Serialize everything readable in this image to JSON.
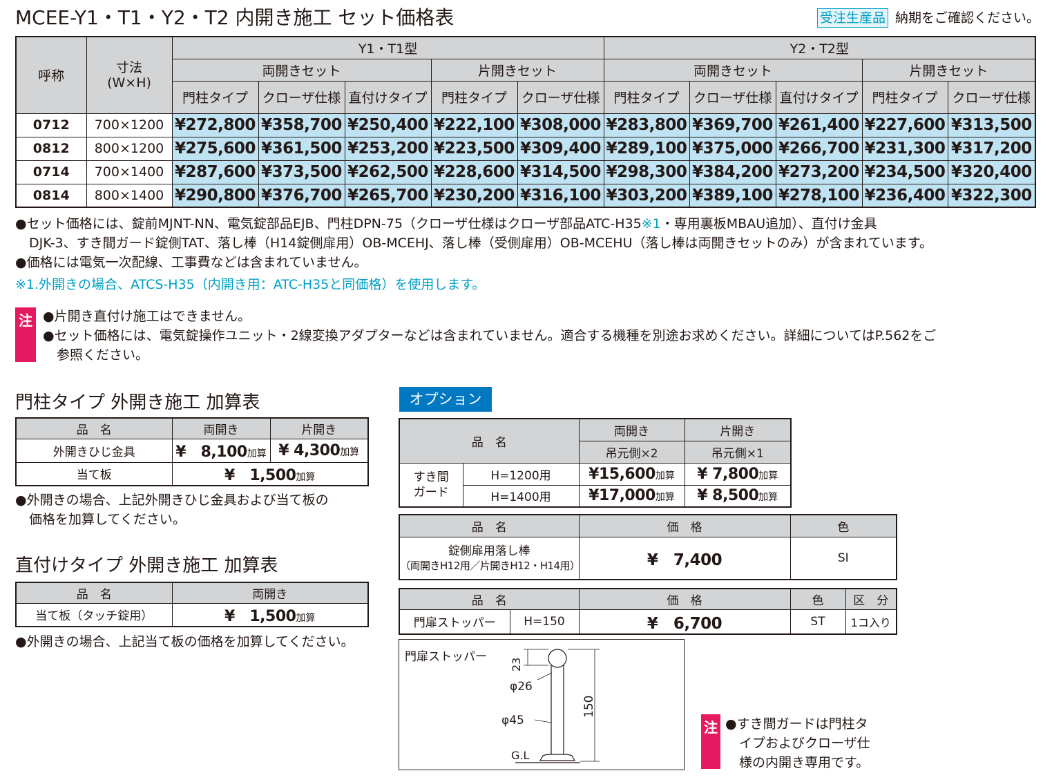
{
  "title": "MCEE-Y1・T1・Y2・T2 内開き施工 セット価格表",
  "order_badge": "受注生産品",
  "order_note": "納期をご確認ください。",
  "main_table": {
    "h_name": "呼称",
    "h_size": "寸法\n(W×H)",
    "group1": "Y1・T1型",
    "group2": "Y2・T2型",
    "both_set": "両開きセット",
    "single_set": "片開きセット",
    "col_post": "門柱タイプ",
    "col_closer": "クローザ仕様",
    "col_direct": "直付けタイプ",
    "rows": [
      {
        "name": "0712",
        "size": "700×1200",
        "v": [
          "¥272,800",
          "¥358,700",
          "¥250,400",
          "¥222,100",
          "¥308,000",
          "¥283,800",
          "¥369,700",
          "¥261,400",
          "¥227,600",
          "¥313,500"
        ]
      },
      {
        "name": "0812",
        "size": "800×1200",
        "v": [
          "¥275,600",
          "¥361,500",
          "¥253,200",
          "¥223,500",
          "¥309,400",
          "¥289,100",
          "¥375,000",
          "¥266,700",
          "¥231,300",
          "¥317,200"
        ]
      },
      {
        "name": "0714",
        "size": "700×1400",
        "v": [
          "¥287,600",
          "¥373,500",
          "¥262,500",
          "¥228,600",
          "¥314,500",
          "¥298,300",
          "¥384,200",
          "¥273,200",
          "¥234,500",
          "¥320,400"
        ]
      },
      {
        "name": "0814",
        "size": "800×1400",
        "v": [
          "¥290,800",
          "¥376,700",
          "¥265,700",
          "¥230,200",
          "¥316,100",
          "¥303,200",
          "¥389,100",
          "¥278,100",
          "¥236,400",
          "¥322,300"
        ]
      }
    ]
  },
  "notes1": {
    "l1a": "●セット価格には、錠前MJNT-NN、電気錠部品EJB、門柱DPN-75（クローザ仕様はクローザ部品ATC-H35",
    "l1b": "※1",
    "l1c": "・専用裏板MBAU追加）、直付け金具",
    "l2": "DJK-3、すき間ガード錠側TAT、落し棒（H14錠側扉用）OB-MCEHJ、落し棒（受側扉用）OB-MCEHU（落し棒は両開きセットのみ）が含まれています。",
    "l3": "●価格には電気一次配線、工事費などは含まれていません。",
    "l4": "※1.外開きの場合、ATCS-H35（内開き用：ATC-H35と同価格）を使用します。"
  },
  "caution_tag": "注",
  "caution1": {
    "l1": "●片開き直付け施工はできません。",
    "l2": "●セット価格には、電気錠操作ユニット・2線変換アダプターなどは含まれていません。適合する機種を別途お求めください。詳細についてはP.562をご",
    "l3": "参照ください。"
  },
  "post_table": {
    "heading": "門柱タイプ 外開き施工 加算表",
    "h_item": "品　名",
    "h_both": "両開き",
    "h_single": "片開き",
    "r1_name": "外開きひじ金具",
    "r1_both": "¥　8,100",
    "r1_single": "¥ 4,300",
    "r2_name": "当て板",
    "r2_price": "¥　1,500",
    "add": "加算",
    "note1": "●外開きの場合、上記外開きひじ金具および当て板の",
    "note2": "価格を加算してください。"
  },
  "direct_table": {
    "heading": "直付けタイプ 外開き施工 加算表",
    "h_item": "品　名",
    "h_both": "両開き",
    "r1_name": "当て板（タッチ錠用）",
    "r1_price": "¥　1,500",
    "add": "加算",
    "note": "●外開きの場合、上記当て板の価格を加算してください。"
  },
  "option": {
    "badge": "オプション",
    "t1": {
      "h_item": "品　名",
      "h_both": "両開き",
      "h_single": "片開き",
      "h_both_sub": "吊元側×2",
      "h_single_sub": "吊元側×1",
      "group": "すき間\nガード",
      "r1_h": "H=1200用",
      "r1_both": "¥15,600",
      "r1_single": "¥ 7,800",
      "r2_h": "H=1400用",
      "r2_both": "¥17,000",
      "r2_single": "¥ 8,500",
      "add": "加算"
    },
    "t2": {
      "h_item": "品　名",
      "h_price": "価　格",
      "h_color": "色",
      "name1": "錠側扉用落し棒",
      "name2": "（両開きH12用／片開きH12・H14用）",
      "price": "¥　7,400",
      "color": "SI"
    },
    "t3": {
      "h_item": "品　名",
      "h_price": "価　格",
      "h_color": "色",
      "h_unit": "区　分",
      "name": "門扉ストッパー",
      "h": "H=150",
      "price": "¥　6,700",
      "color": "ST",
      "unit": "1コ入り"
    }
  },
  "stopper_fig": {
    "label": "門扉ストッパー",
    "d23": "23",
    "d26": "φ26",
    "d45": "φ45",
    "d150": "150",
    "gl": "G.L"
  },
  "caution2": {
    "l1": "●すき間ガードは門柱タ",
    "l2": "イプおよびクローザ仕",
    "l3": "様の内開き専用です。"
  }
}
